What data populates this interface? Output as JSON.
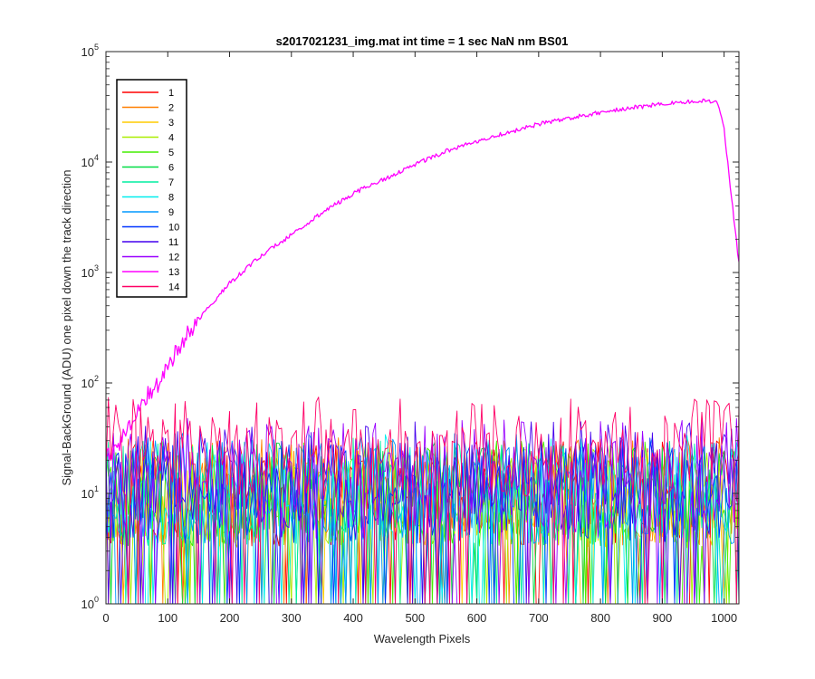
{
  "chart_data": {
    "type": "line",
    "title": "s2017021231_img.mat int time = 1 sec  NaN nm BS01",
    "xlabel": "Wavelength Pixels",
    "ylabel": "Signal-BackGround (ADU) one pixel down the track direction",
    "xlim": [
      0,
      1024
    ],
    "ylim": [
      1,
      100000
    ],
    "yscale": "log",
    "grid": false,
    "legend_position": "top-left",
    "x_ticks": [
      "0",
      "100",
      "200",
      "300",
      "400",
      "500",
      "600",
      "700",
      "800",
      "900",
      "1000"
    ],
    "y_ticks": [
      {
        "base": "10",
        "exp": "0"
      },
      {
        "base": "10",
        "exp": "1"
      },
      {
        "base": "10",
        "exp": "2"
      },
      {
        "base": "10",
        "exp": "3"
      },
      {
        "base": "10",
        "exp": "4"
      },
      {
        "base": "10",
        "exp": "5"
      }
    ],
    "series": [
      {
        "name": "1",
        "color": "#ff0000",
        "profile": "noise",
        "noise_range": [
          1,
          30
        ]
      },
      {
        "name": "2",
        "color": "#ff7f00",
        "profile": "noise",
        "noise_range": [
          1,
          32
        ]
      },
      {
        "name": "3",
        "color": "#ffcc00",
        "profile": "noise",
        "noise_range": [
          1,
          30
        ]
      },
      {
        "name": "4",
        "color": "#aaee00",
        "profile": "noise",
        "noise_range": [
          1,
          28
        ]
      },
      {
        "name": "5",
        "color": "#44ee00",
        "profile": "noise",
        "noise_range": [
          1,
          30
        ]
      },
      {
        "name": "6",
        "color": "#00dd44",
        "profile": "noise",
        "noise_range": [
          1,
          30
        ]
      },
      {
        "name": "7",
        "color": "#00eea0",
        "profile": "noise",
        "noise_range": [
          1,
          32
        ]
      },
      {
        "name": "8",
        "color": "#00eeee",
        "profile": "noise",
        "noise_range": [
          1,
          35
        ]
      },
      {
        "name": "9",
        "color": "#0099ff",
        "profile": "noise",
        "noise_range": [
          1,
          35
        ]
      },
      {
        "name": "10",
        "color": "#0033ff",
        "profile": "noise",
        "noise_range": [
          1,
          35
        ]
      },
      {
        "name": "11",
        "color": "#4400ee",
        "profile": "noise",
        "noise_range": [
          1,
          45
        ]
      },
      {
        "name": "12",
        "color": "#9900ff",
        "profile": "noise",
        "noise_range": [
          1,
          50
        ]
      },
      {
        "name": "13",
        "color": "#ff00ff",
        "profile": "signal",
        "points": [
          [
            0,
            20
          ],
          [
            20,
            28
          ],
          [
            40,
            45
          ],
          [
            60,
            70
          ],
          [
            80,
            90
          ],
          [
            100,
            140
          ],
          [
            120,
            220
          ],
          [
            150,
            380
          ],
          [
            200,
            800
          ],
          [
            250,
            1400
          ],
          [
            300,
            2200
          ],
          [
            350,
            3500
          ],
          [
            400,
            5200
          ],
          [
            450,
            7000
          ],
          [
            500,
            9500
          ],
          [
            550,
            12500
          ],
          [
            600,
            15500
          ],
          [
            650,
            18500
          ],
          [
            700,
            22000
          ],
          [
            750,
            25000
          ],
          [
            800,
            28000
          ],
          [
            850,
            31000
          ],
          [
            900,
            33500
          ],
          [
            950,
            35500
          ],
          [
            970,
            36500
          ],
          [
            990,
            34000
          ],
          [
            1000,
            20000
          ],
          [
            1010,
            6000
          ],
          [
            1024,
            1200
          ]
        ]
      },
      {
        "name": "14",
        "color": "#ff0066",
        "profile": "noise",
        "noise_range": [
          3,
          75
        ]
      }
    ]
  }
}
